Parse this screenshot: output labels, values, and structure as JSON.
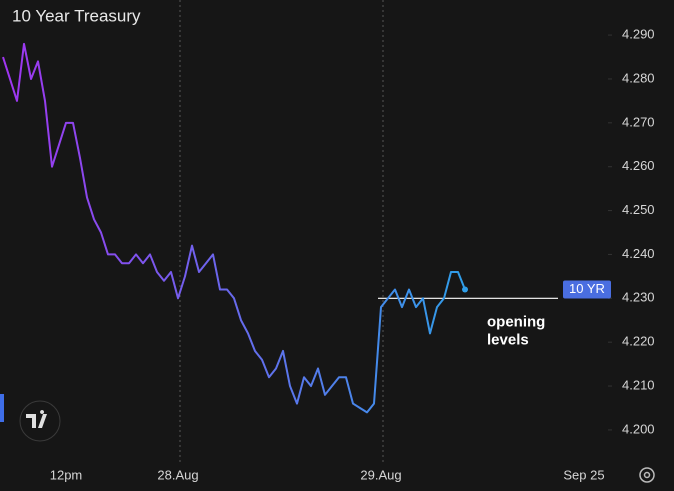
{
  "chart_data": {
    "type": "line",
    "title": "10 Year Treasury",
    "categories": [
      null,
      null,
      null,
      null,
      null,
      null,
      null,
      null,
      null,
      "12pm",
      null,
      null,
      null,
      null,
      null,
      null,
      null,
      null,
      null,
      null,
      null,
      null,
      null,
      null,
      null,
      "28.Aug",
      null,
      null,
      null,
      null,
      null,
      null,
      null,
      null,
      null,
      null,
      null,
      null,
      null,
      null,
      null,
      null,
      null,
      null,
      null,
      null,
      null,
      null,
      null,
      null,
      null,
      null,
      null,
      null,
      "29.Aug",
      null,
      null,
      null,
      null,
      null,
      null,
      null,
      null,
      null,
      null,
      null,
      null,
      null,
      null,
      null,
      null,
      null,
      null,
      null,
      null,
      null,
      null,
      null,
      null,
      null,
      null,
      null,
      null,
      "Sep 25",
      null,
      null
    ],
    "series": [
      {
        "name": "10 YR",
        "color": "#4a6ee0",
        "gradient": [
          "#a035f0",
          "#2f9ee8"
        ],
        "values": [
          4.285,
          4.28,
          4.275,
          4.288,
          4.28,
          4.284,
          4.275,
          4.26,
          4.265,
          4.27,
          4.27,
          4.262,
          4.253,
          4.248,
          4.245,
          4.24,
          4.24,
          4.238,
          4.238,
          4.24,
          4.238,
          4.24,
          4.236,
          4.234,
          4.236,
          4.23,
          4.235,
          4.242,
          4.236,
          4.238,
          4.24,
          4.232,
          4.232,
          4.23,
          4.225,
          4.222,
          4.218,
          4.216,
          4.212,
          4.214,
          4.218,
          4.21,
          4.206,
          4.212,
          4.21,
          4.214,
          4.208,
          4.21,
          4.212,
          4.212,
          4.206,
          4.205,
          4.204,
          4.206,
          4.228,
          4.23,
          4.232,
          4.228,
          4.232,
          4.228,
          4.23,
          4.222,
          4.228,
          4.23,
          4.236,
          4.236,
          4.232,
          null,
          null,
          null,
          null,
          null,
          null,
          null,
          null,
          null,
          null,
          null,
          null,
          null,
          null,
          null,
          null,
          null,
          null,
          null
        ]
      }
    ],
    "annotation": {
      "text": "opening levels",
      "value": 4.23
    },
    "ylim": [
      4.192,
      4.298
    ],
    "yticks": [
      {
        "value": 4.2,
        "label": "4.200"
      },
      {
        "value": 4.21,
        "label": "4.210"
      },
      {
        "value": 4.22,
        "label": "4.220"
      },
      {
        "value": 4.23,
        "label": "4.230"
      },
      {
        "value": 4.24,
        "label": "4.240"
      },
      {
        "value": 4.25,
        "label": "4.250"
      },
      {
        "value": 4.26,
        "label": "4.260"
      },
      {
        "value": 4.27,
        "label": "4.270"
      },
      {
        "value": 4.28,
        "label": "4.280"
      },
      {
        "value": 4.29,
        "label": "4.290"
      }
    ]
  }
}
